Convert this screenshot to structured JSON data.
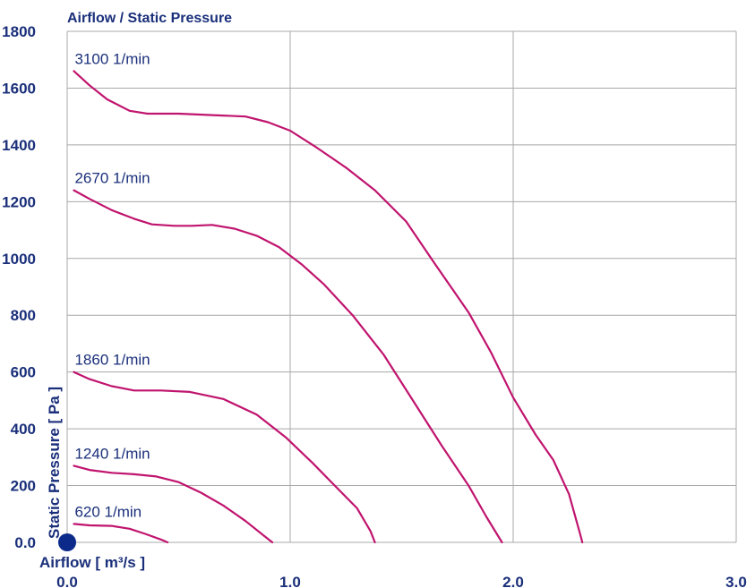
{
  "chart_data": {
    "type": "line",
    "title": "Airflow / Static Pressure",
    "xlabel": "Airflow [ m³/s ]",
    "ylabel": "Static Pressure [ Pa ]",
    "xlim": [
      0,
      3
    ],
    "ylim": [
      0,
      1800
    ],
    "x_ticks": [
      {
        "value": 0,
        "label": "0.0"
      },
      {
        "value": 1,
        "label": "1.0"
      },
      {
        "value": 2,
        "label": "2.0"
      },
      {
        "value": 3,
        "label": "3.0"
      }
    ],
    "y_ticks": [
      {
        "value": 0,
        "label": "0.0"
      },
      {
        "value": 200,
        "label": "200"
      },
      {
        "value": 400,
        "label": "400"
      },
      {
        "value": 600,
        "label": "600"
      },
      {
        "value": 800,
        "label": "800"
      },
      {
        "value": 1000,
        "label": "1000"
      },
      {
        "value": 1200,
        "label": "1200"
      },
      {
        "value": 1400,
        "label": "1400"
      },
      {
        "value": 1600,
        "label": "1600"
      },
      {
        "value": 1800,
        "label": "1800"
      }
    ],
    "grid": true,
    "colors": {
      "curve": "#c0146e",
      "text": "#1a2f7a",
      "grid": "#a8a8a8",
      "origin_dot": "#0b2a8a"
    },
    "series": [
      {
        "name": "3100 1/min",
        "points": [
          [
            0.03,
            1660
          ],
          [
            0.1,
            1610
          ],
          [
            0.18,
            1560
          ],
          [
            0.28,
            1520
          ],
          [
            0.36,
            1510
          ],
          [
            0.5,
            1510
          ],
          [
            0.65,
            1505
          ],
          [
            0.8,
            1500
          ],
          [
            0.9,
            1480
          ],
          [
            1.0,
            1450
          ],
          [
            1.12,
            1390
          ],
          [
            1.25,
            1320
          ],
          [
            1.38,
            1240
          ],
          [
            1.52,
            1130
          ],
          [
            1.65,
            980
          ],
          [
            1.8,
            810
          ],
          [
            1.9,
            670
          ],
          [
            2.0,
            510
          ],
          [
            2.1,
            380
          ],
          [
            2.18,
            290
          ],
          [
            2.25,
            170
          ],
          [
            2.3,
            30
          ],
          [
            2.31,
            0
          ]
        ]
      },
      {
        "name": "2670 1/min",
        "points": [
          [
            0.03,
            1240
          ],
          [
            0.1,
            1210
          ],
          [
            0.2,
            1170
          ],
          [
            0.3,
            1140
          ],
          [
            0.38,
            1120
          ],
          [
            0.48,
            1115
          ],
          [
            0.56,
            1115
          ],
          [
            0.65,
            1118
          ],
          [
            0.75,
            1105
          ],
          [
            0.85,
            1080
          ],
          [
            0.95,
            1040
          ],
          [
            1.05,
            980
          ],
          [
            1.15,
            910
          ],
          [
            1.28,
            800
          ],
          [
            1.42,
            660
          ],
          [
            1.55,
            500
          ],
          [
            1.68,
            340
          ],
          [
            1.8,
            200
          ],
          [
            1.88,
            90
          ],
          [
            1.95,
            0
          ]
        ]
      },
      {
        "name": "1860 1/min",
        "points": [
          [
            0.03,
            600
          ],
          [
            0.1,
            575
          ],
          [
            0.2,
            550
          ],
          [
            0.3,
            535
          ],
          [
            0.42,
            535
          ],
          [
            0.55,
            530
          ],
          [
            0.7,
            505
          ],
          [
            0.85,
            450
          ],
          [
            0.98,
            370
          ],
          [
            1.1,
            280
          ],
          [
            1.2,
            200
          ],
          [
            1.3,
            120
          ],
          [
            1.36,
            40
          ],
          [
            1.38,
            0
          ]
        ]
      },
      {
        "name": "1240 1/min",
        "points": [
          [
            0.03,
            270
          ],
          [
            0.1,
            255
          ],
          [
            0.2,
            245
          ],
          [
            0.3,
            240
          ],
          [
            0.4,
            232
          ],
          [
            0.5,
            212
          ],
          [
            0.6,
            175
          ],
          [
            0.7,
            130
          ],
          [
            0.8,
            75
          ],
          [
            0.88,
            25
          ],
          [
            0.92,
            0
          ]
        ]
      },
      {
        "name": "620 1/min",
        "points": [
          [
            0.03,
            65
          ],
          [
            0.1,
            60
          ],
          [
            0.2,
            58
          ],
          [
            0.28,
            48
          ],
          [
            0.35,
            30
          ],
          [
            0.42,
            10
          ],
          [
            0.45,
            0
          ]
        ]
      }
    ]
  }
}
